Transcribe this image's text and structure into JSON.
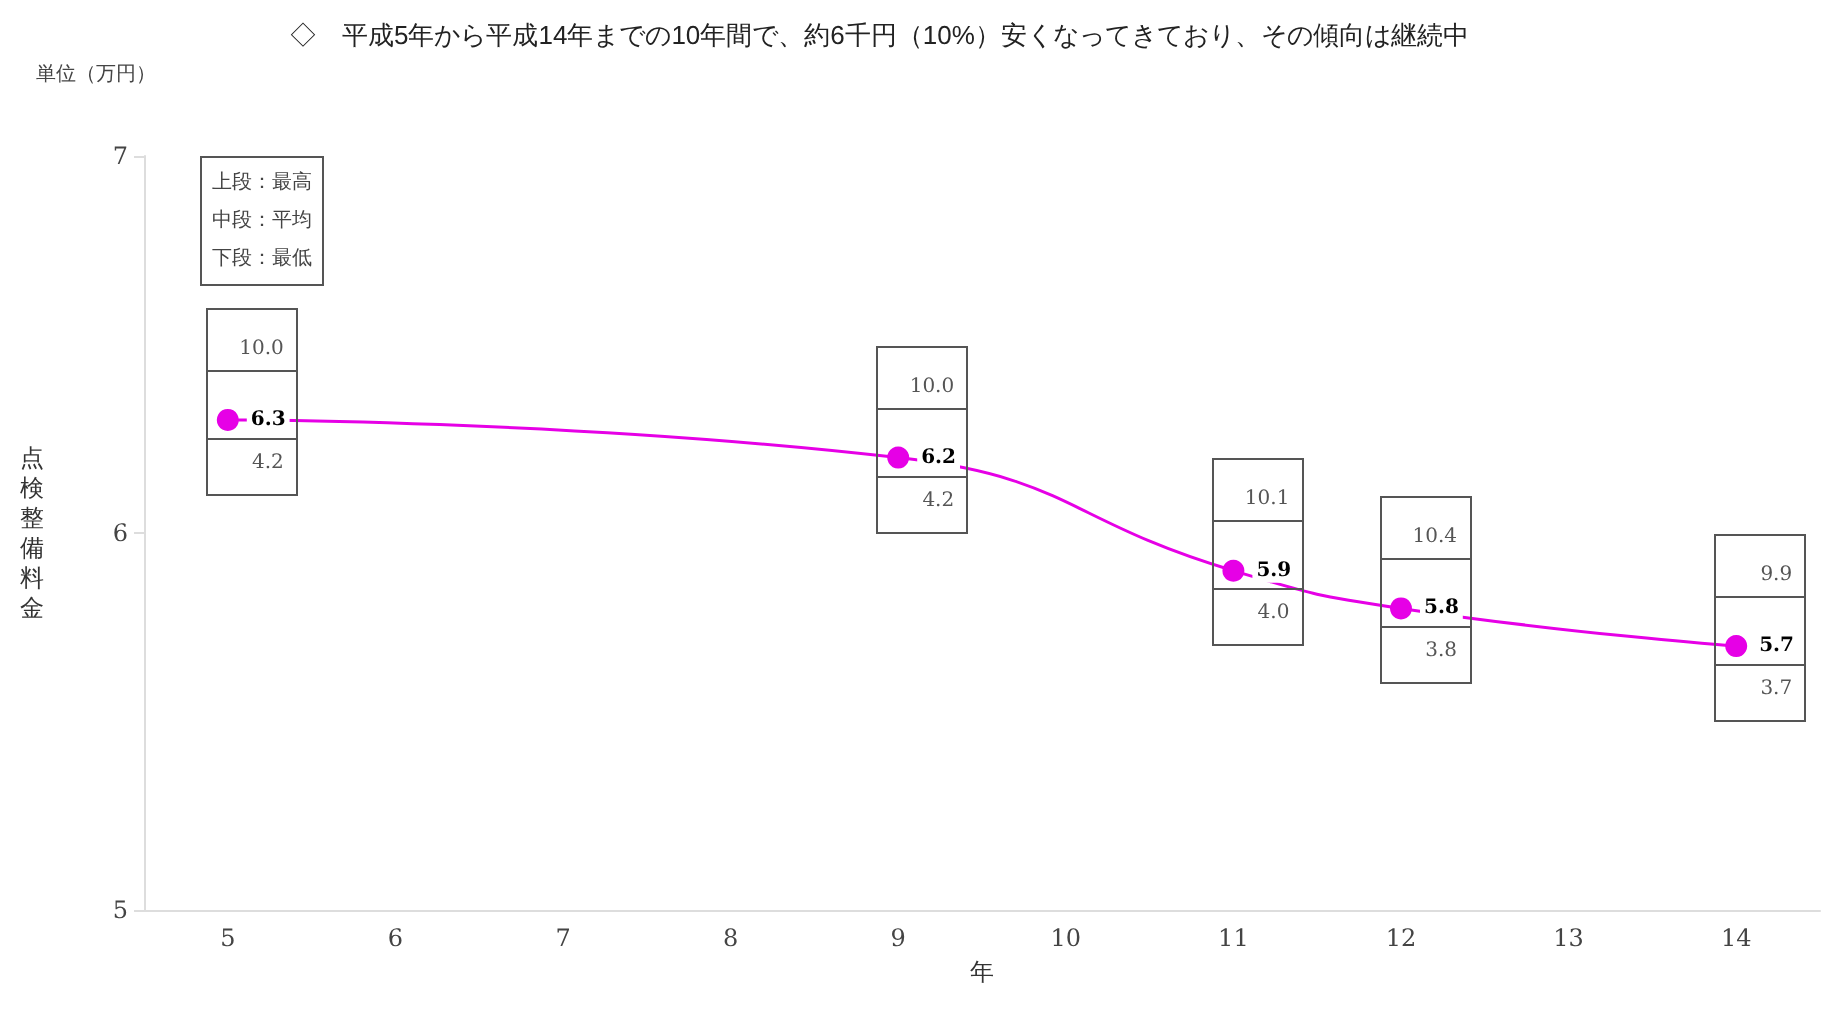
{
  "chart_data": {
    "type": "line",
    "title": "◇　平成5年から平成14年までの10年間で、約6千円（10%）安くなってきており、その傾向は継続中",
    "xlabel": "年",
    "ylabel": "点検整備料金",
    "categories": [
      "5",
      "6",
      "7",
      "8",
      "9",
      "10",
      "11",
      "12",
      "13",
      "14"
    ],
    "series": [
      {
        "color": "#e600e6",
        "values": [
          6.3,
          null,
          null,
          null,
          6.2,
          null,
          5.9,
          5.8,
          null,
          5.7
        ]
      }
    ],
    "ylim": [
      5,
      7
    ],
    "yticks": [
      5,
      6,
      7
    ],
    "grid": false,
    "marker": "circle",
    "line_style": "solid",
    "data_labels": true,
    "annotations": [
      "単位（万円）",
      "上段：最高",
      "中段：平均",
      "下段：最低",
      "10.0",
      "4.2",
      "10.0",
      "4.2",
      "10.1",
      "4.0",
      "10.4",
      "3.8",
      "9.9",
      "3.7"
    ]
  }
}
